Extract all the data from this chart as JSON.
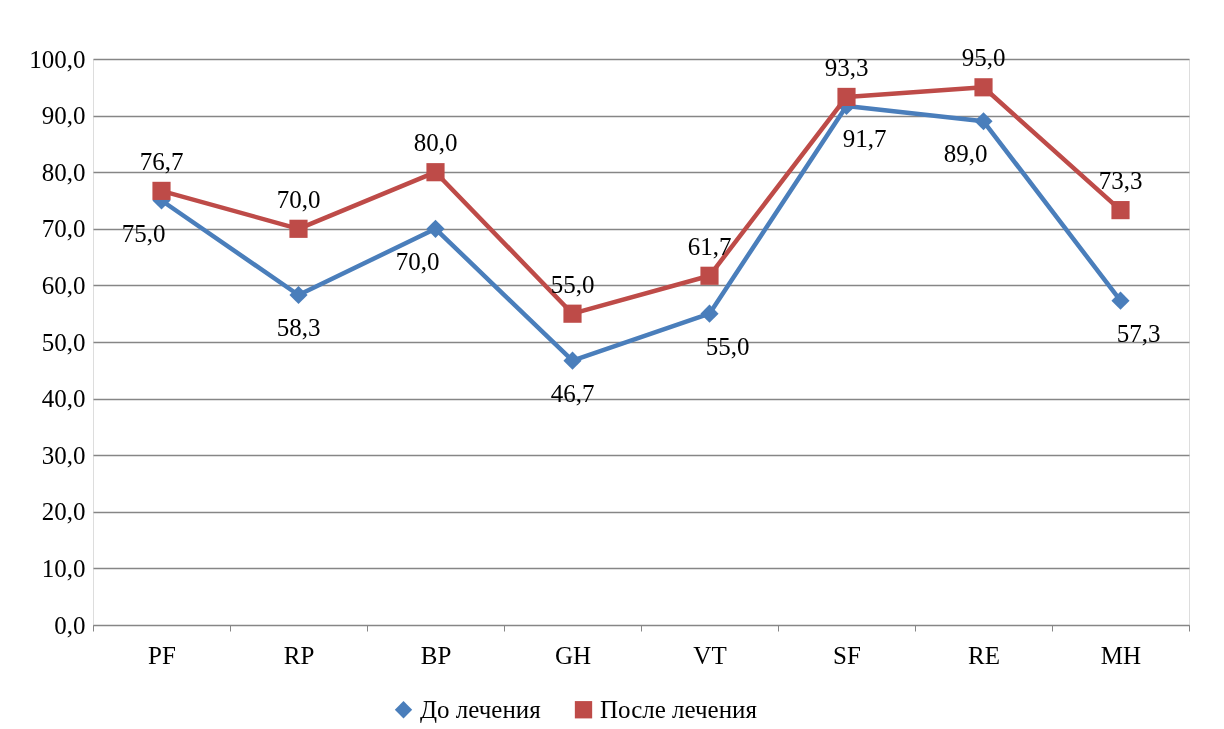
{
  "chart_data": {
    "type": "line",
    "categories": [
      "PF",
      "RP",
      "BP",
      "GH",
      "VT",
      "SF",
      "RE",
      "MH"
    ],
    "series": [
      {
        "name": "До лечения",
        "color": "#4a7ebb",
        "marker": "diamond",
        "values": [
          75.0,
          58.3,
          70.0,
          46.7,
          55.0,
          91.7,
          89.0,
          57.3
        ],
        "value_labels": [
          "75,0",
          "58,3",
          "70,0",
          "46,7",
          "55,0",
          "91,7",
          "89,0",
          "57,3"
        ]
      },
      {
        "name": "После лечения",
        "color": "#be4b48",
        "marker": "square",
        "values": [
          76.7,
          70.0,
          80.0,
          55.0,
          61.7,
          93.3,
          95.0,
          73.3
        ],
        "value_labels": [
          "76,7",
          "70,0",
          "80,0",
          "55,0",
          "61,7",
          "93,3",
          "95,0",
          "73,3"
        ]
      }
    ],
    "ylim": [
      0,
      100
    ],
    "yticks": [
      {
        "value": 0,
        "label": "0,0"
      },
      {
        "value": 10,
        "label": "10,0"
      },
      {
        "value": 20,
        "label": "20,0"
      },
      {
        "value": 30,
        "label": "30,0"
      },
      {
        "value": 40,
        "label": "40,0"
      },
      {
        "value": 50,
        "label": "50,0"
      },
      {
        "value": 60,
        "label": "60,0"
      },
      {
        "value": 70,
        "label": "70,0"
      },
      {
        "value": 80,
        "label": "80,0"
      },
      {
        "value": 90,
        "label": "90,0"
      },
      {
        "value": 100,
        "label": "100,0"
      }
    ],
    "grid": "y",
    "legend": "bottom",
    "line_style": "solid"
  }
}
